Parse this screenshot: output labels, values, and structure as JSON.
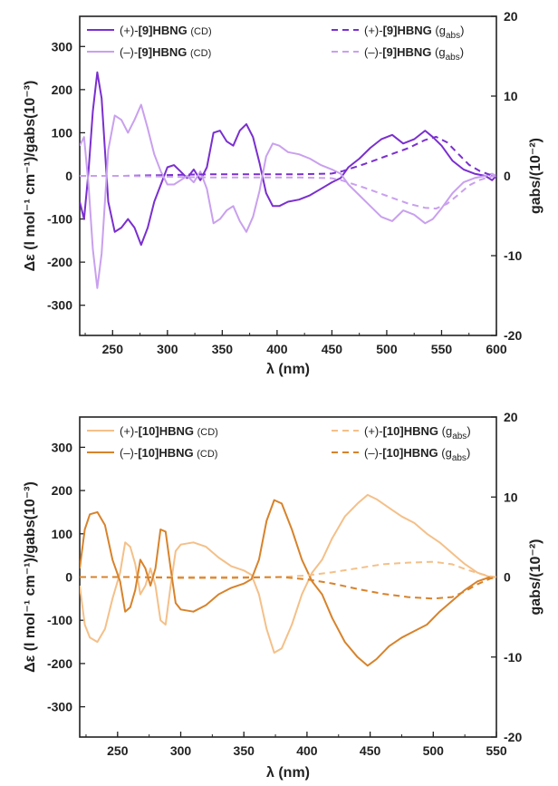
{
  "colors": {
    "p9": "#7a2fcf",
    "m9": "#c9a0ee",
    "p10": "#f4c089",
    "m10": "#d7832c"
  },
  "chart_data": [
    {
      "type": "line",
      "xlabel": "λ (nm)",
      "ylabel_left": "Δε (l mol⁻¹ cm⁻¹)/gabs(10⁻³)",
      "ylabel_right": "gabs/(10⁻²)",
      "xlim": [
        220,
        600
      ],
      "ylim_left": [
        -370,
        370
      ],
      "ylim_right": [
        -20,
        20
      ],
      "x_ticks": [
        "250",
        "300",
        "350",
        "400",
        "450",
        "500",
        "550",
        "600"
      ],
      "y_ticks_left": [
        "-300",
        "-200",
        "-100",
        "0",
        "100",
        "200",
        "300"
      ],
      "y_ticks_right": [
        "-20",
        "-10",
        "0",
        "10",
        "20"
      ],
      "grid": false,
      "legend": [
        {
          "sign": "(+)-",
          "name": "[9]HBNG",
          "suffix": "(CD)"
        },
        {
          "sign": "(–)-",
          "name": "[9]HBNG",
          "suffix": "(CD)"
        },
        {
          "sign": "(+)-",
          "name": "[9]HBNG",
          "suffix": "(g",
          "sub": "abs",
          "close": ")"
        },
        {
          "sign": "(–)-",
          "name": "[9]HBNG",
          "suffix": "(g",
          "sub": "abs",
          "close": ")"
        }
      ],
      "series": [
        {
          "name": "(+)-[9]HBNG (CD)",
          "style": "solid",
          "color_key": "p9",
          "x": [
            220,
            224,
            228,
            232,
            236,
            240,
            246,
            252,
            258,
            264,
            270,
            276,
            282,
            288,
            294,
            300,
            306,
            312,
            318,
            324,
            330,
            336,
            342,
            348,
            354,
            360,
            366,
            372,
            378,
            384,
            390,
            396,
            402,
            410,
            420,
            430,
            440,
            450,
            458,
            465,
            475,
            485,
            495,
            505,
            515,
            525,
            535,
            542,
            550,
            560,
            570,
            580,
            590,
            596,
            600
          ],
          "y": [
            -60,
            -100,
            10,
            150,
            240,
            180,
            -60,
            -130,
            -120,
            -100,
            -120,
            -160,
            -120,
            -60,
            -20,
            20,
            25,
            10,
            -5,
            15,
            -10,
            20,
            100,
            105,
            80,
            70,
            105,
            120,
            90,
            30,
            -40,
            -70,
            -70,
            -60,
            -55,
            -45,
            -30,
            -15,
            -5,
            20,
            40,
            65,
            85,
            95,
            75,
            85,
            105,
            90,
            70,
            35,
            15,
            5,
            0,
            -10,
            0
          ]
        },
        {
          "name": "(–)-[9]HBNG (CD)",
          "style": "solid",
          "color_key": "m9",
          "x": [
            220,
            224,
            228,
            232,
            236,
            240,
            246,
            252,
            258,
            264,
            270,
            276,
            282,
            288,
            294,
            300,
            306,
            312,
            318,
            324,
            330,
            336,
            342,
            348,
            354,
            360,
            366,
            372,
            378,
            384,
            390,
            396,
            402,
            410,
            420,
            430,
            440,
            450,
            458,
            465,
            475,
            485,
            495,
            505,
            515,
            525,
            535,
            542,
            550,
            560,
            570,
            580,
            590,
            596,
            600
          ],
          "y": [
            70,
            90,
            -20,
            -170,
            -260,
            -180,
            60,
            140,
            130,
            100,
            130,
            165,
            110,
            50,
            10,
            -20,
            -20,
            -10,
            0,
            -15,
            10,
            -30,
            -110,
            -100,
            -80,
            -70,
            -105,
            -130,
            -95,
            -35,
            45,
            75,
            70,
            55,
            50,
            40,
            25,
            15,
            5,
            -20,
            -45,
            -70,
            -95,
            -105,
            -80,
            -90,
            -110,
            -100,
            -75,
            -40,
            -15,
            -5,
            0,
            5,
            0
          ]
        },
        {
          "name": "(+)-[9]HBNG (gabs)",
          "style": "dash",
          "color_key": "p9",
          "axis": "right",
          "x": [
            220,
            260,
            300,
            340,
            380,
            420,
            450,
            460,
            480,
            500,
            520,
            535,
            545,
            555,
            565,
            575,
            585,
            595,
            600
          ],
          "y": [
            0,
            0,
            0.1,
            0.2,
            0.2,
            0.2,
            0.3,
            0.6,
            1.5,
            2.5,
            3.5,
            4.5,
            4.9,
            4.2,
            2.8,
            1.4,
            0.6,
            0.1,
            0
          ]
        },
        {
          "name": "(–)-[9]HBNG (gabs)",
          "style": "dash",
          "color_key": "m9",
          "axis": "right",
          "x": [
            220,
            260,
            300,
            340,
            380,
            420,
            450,
            460,
            480,
            500,
            520,
            535,
            545,
            555,
            565,
            575,
            585,
            595,
            600
          ],
          "y": [
            0,
            0,
            -0.1,
            -0.2,
            -0.2,
            -0.2,
            -0.3,
            -0.6,
            -1.5,
            -2.5,
            -3.5,
            -4.0,
            -4.1,
            -3.5,
            -2.4,
            -1.2,
            -0.5,
            -0.1,
            0
          ]
        }
      ]
    },
    {
      "type": "line",
      "xlabel": "λ (nm)",
      "ylabel_left": "Δε (l mol⁻¹ cm⁻¹)/gabs(10⁻³)",
      "ylabel_right": "gabs/(10⁻²)",
      "xlim": [
        220,
        550
      ],
      "ylim_left": [
        -370,
        370
      ],
      "ylim_right": [
        -20,
        20
      ],
      "x_ticks": [
        "250",
        "300",
        "350",
        "400",
        "450",
        "500",
        "550"
      ],
      "y_ticks_left": [
        "-300",
        "-200",
        "-100",
        "0",
        "100",
        "200",
        "300"
      ],
      "y_ticks_right": [
        "-20",
        "-10",
        "0",
        "10",
        "20"
      ],
      "grid": false,
      "legend": [
        {
          "sign": "(+)-",
          "name": "[10]HBNG",
          "suffix": "(CD)"
        },
        {
          "sign": "(–)-",
          "name": "[10]HBNG",
          "suffix": "(CD)"
        },
        {
          "sign": "(+)-",
          "name": "[10]HBNG",
          "suffix": "(g",
          "sub": "abs",
          "close": ")"
        },
        {
          "sign": "(–)-",
          "name": "[10]HBNG",
          "suffix": "(g",
          "sub": "abs",
          "close": ")"
        }
      ],
      "series": [
        {
          "name": "(+)-[10]HBNG (CD)",
          "style": "solid",
          "color_key": "p10",
          "x": [
            220,
            224,
            228,
            234,
            240,
            246,
            252,
            256,
            260,
            264,
            268,
            272,
            276,
            280,
            284,
            288,
            292,
            296,
            300,
            310,
            320,
            330,
            340,
            350,
            356,
            362,
            368,
            374,
            380,
            388,
            396,
            404,
            412,
            420,
            430,
            440,
            448,
            455,
            465,
            475,
            485,
            495,
            505,
            515,
            525,
            535,
            545,
            550
          ],
          "y": [
            -20,
            -110,
            -140,
            -150,
            -120,
            -50,
            10,
            80,
            70,
            30,
            -40,
            -20,
            20,
            -20,
            -100,
            -110,
            -20,
            60,
            75,
            80,
            70,
            45,
            25,
            15,
            5,
            -40,
            -120,
            -175,
            -165,
            -110,
            -40,
            10,
            40,
            90,
            140,
            170,
            190,
            180,
            160,
            140,
            125,
            100,
            80,
            55,
            30,
            10,
            0,
            0
          ]
        },
        {
          "name": "(–)-[10]HBNG (CD)",
          "style": "solid",
          "color_key": "m10",
          "x": [
            220,
            224,
            228,
            234,
            240,
            246,
            252,
            256,
            260,
            264,
            268,
            272,
            276,
            280,
            284,
            288,
            292,
            296,
            300,
            310,
            320,
            330,
            340,
            350,
            356,
            362,
            368,
            374,
            380,
            388,
            396,
            404,
            412,
            420,
            430,
            440,
            448,
            455,
            465,
            475,
            485,
            495,
            505,
            515,
            525,
            535,
            545,
            550
          ],
          "y": [
            20,
            110,
            145,
            150,
            120,
            40,
            -10,
            -80,
            -70,
            -30,
            40,
            20,
            -20,
            20,
            110,
            105,
            20,
            -60,
            -75,
            -80,
            -65,
            -40,
            -25,
            -15,
            -5,
            40,
            130,
            178,
            170,
            110,
            40,
            -10,
            -40,
            -95,
            -150,
            -185,
            -205,
            -190,
            -160,
            -140,
            -125,
            -110,
            -80,
            -55,
            -30,
            -10,
            0,
            0
          ]
        },
        {
          "name": "(+)-[10]HBNG (gabs)",
          "style": "dash",
          "color_key": "p10",
          "axis": "right",
          "x": [
            220,
            260,
            300,
            340,
            380,
            400,
            420,
            440,
            460,
            480,
            500,
            515,
            525,
            535,
            545,
            550
          ],
          "y": [
            0,
            0,
            0,
            0,
            0,
            0.2,
            0.6,
            1.1,
            1.6,
            1.8,
            1.9,
            1.6,
            1.0,
            0.5,
            0.1,
            0
          ]
        },
        {
          "name": "(–)-[10]HBNG (gabs)",
          "style": "dash",
          "color_key": "m10",
          "axis": "right",
          "x": [
            220,
            260,
            300,
            340,
            380,
            400,
            420,
            440,
            460,
            480,
            500,
            515,
            525,
            535,
            545,
            550
          ],
          "y": [
            0,
            0,
            -0.1,
            -0.1,
            0,
            -0.3,
            -0.8,
            -1.5,
            -2.1,
            -2.5,
            -2.7,
            -2.5,
            -1.8,
            -0.9,
            -0.2,
            0
          ]
        }
      ]
    }
  ]
}
